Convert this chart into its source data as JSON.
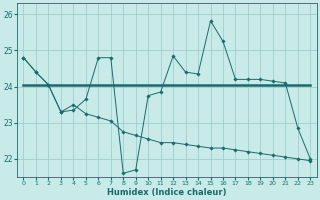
{
  "xlabel": "Humidex (Indice chaleur)",
  "xlim": [
    -0.5,
    23.5
  ],
  "ylim": [
    21.5,
    26.3
  ],
  "yticks": [
    22,
    23,
    24,
    25,
    26
  ],
  "xticks": [
    0,
    1,
    2,
    3,
    4,
    5,
    6,
    7,
    8,
    9,
    10,
    11,
    12,
    13,
    14,
    15,
    16,
    17,
    18,
    19,
    20,
    21,
    22,
    23
  ],
  "bg_color": "#c8eae8",
  "line_color": "#1a6b6b",
  "series1_x": [
    0,
    1,
    2,
    3,
    4,
    5,
    6,
    7,
    8,
    9,
    10,
    11,
    12,
    13,
    14,
    15,
    16,
    17,
    18,
    19,
    20,
    21,
    22,
    23
  ],
  "series1_y": [
    24.8,
    24.4,
    24.05,
    23.3,
    23.35,
    23.65,
    24.8,
    24.8,
    21.6,
    21.7,
    23.75,
    23.85,
    24.85,
    24.4,
    24.35,
    25.82,
    25.25,
    24.2,
    24.2,
    24.2,
    24.15,
    24.1,
    22.85,
    22.0
  ],
  "series2_x": [
    0,
    1,
    2,
    3,
    4,
    5,
    6,
    7,
    8,
    9,
    10,
    11,
    12,
    13,
    14,
    15,
    16,
    17,
    18,
    19,
    20,
    21,
    22,
    23
  ],
  "series2_y": [
    24.8,
    24.4,
    24.05,
    23.3,
    23.5,
    23.25,
    23.15,
    23.05,
    22.75,
    22.65,
    22.55,
    22.45,
    22.45,
    22.4,
    22.35,
    22.3,
    22.3,
    22.25,
    22.2,
    22.15,
    22.1,
    22.05,
    22.0,
    21.95
  ],
  "series3_x": [
    0,
    23
  ],
  "series3_y": [
    24.05,
    24.05
  ],
  "grid_color": "#9ecece",
  "grid_major_color": "#8cbcbc",
  "marker": "D",
  "markersize": 1.8,
  "lw1": 0.7,
  "lw2": 0.7,
  "lw3": 1.8
}
